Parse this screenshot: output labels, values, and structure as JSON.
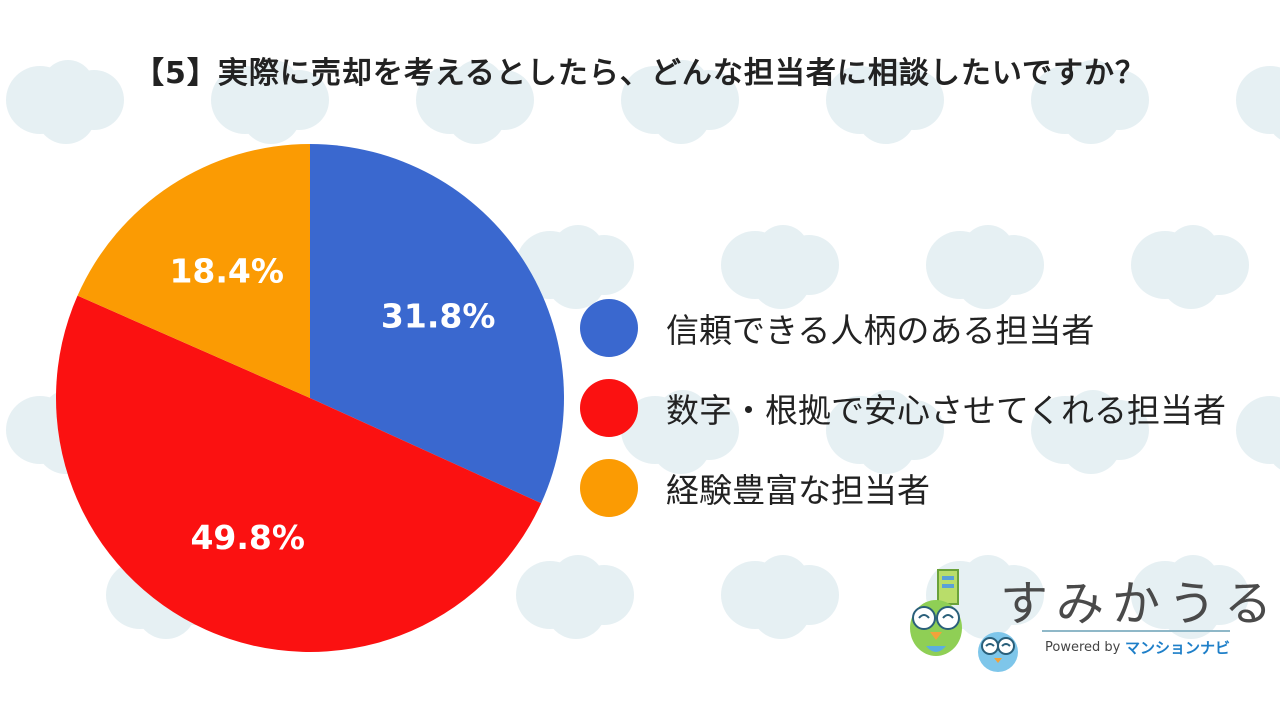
{
  "title": "【5】実際に売却を考えるとしたら、どんな担当者に相談したいですか？",
  "colors": {
    "blue": "#3a68cf",
    "red": "#fb1111",
    "orange": "#fb9b03",
    "pattern": "#e6f0f3"
  },
  "chart_data": {
    "type": "pie",
    "title": "【5】実際に売却を考えるとしたら、どんな担当者に相談したいですか？",
    "slices": [
      {
        "label": "信頼できる人柄のある担当者",
        "value": 31.8,
        "display": "31.8%",
        "color": "#3a68cf"
      },
      {
        "label": "数字・根拠で安心させてくれる担当者",
        "value": 49.8,
        "display": "49.8%",
        "color": "#fb1111"
      },
      {
        "label": "経験豊富な担当者",
        "value": 18.4,
        "display": "18.4%",
        "color": "#fb9b03"
      }
    ],
    "legend": "right"
  },
  "logo": {
    "name": "すみかうる",
    "powered": "Powered by",
    "brand": "マンションナビ"
  }
}
